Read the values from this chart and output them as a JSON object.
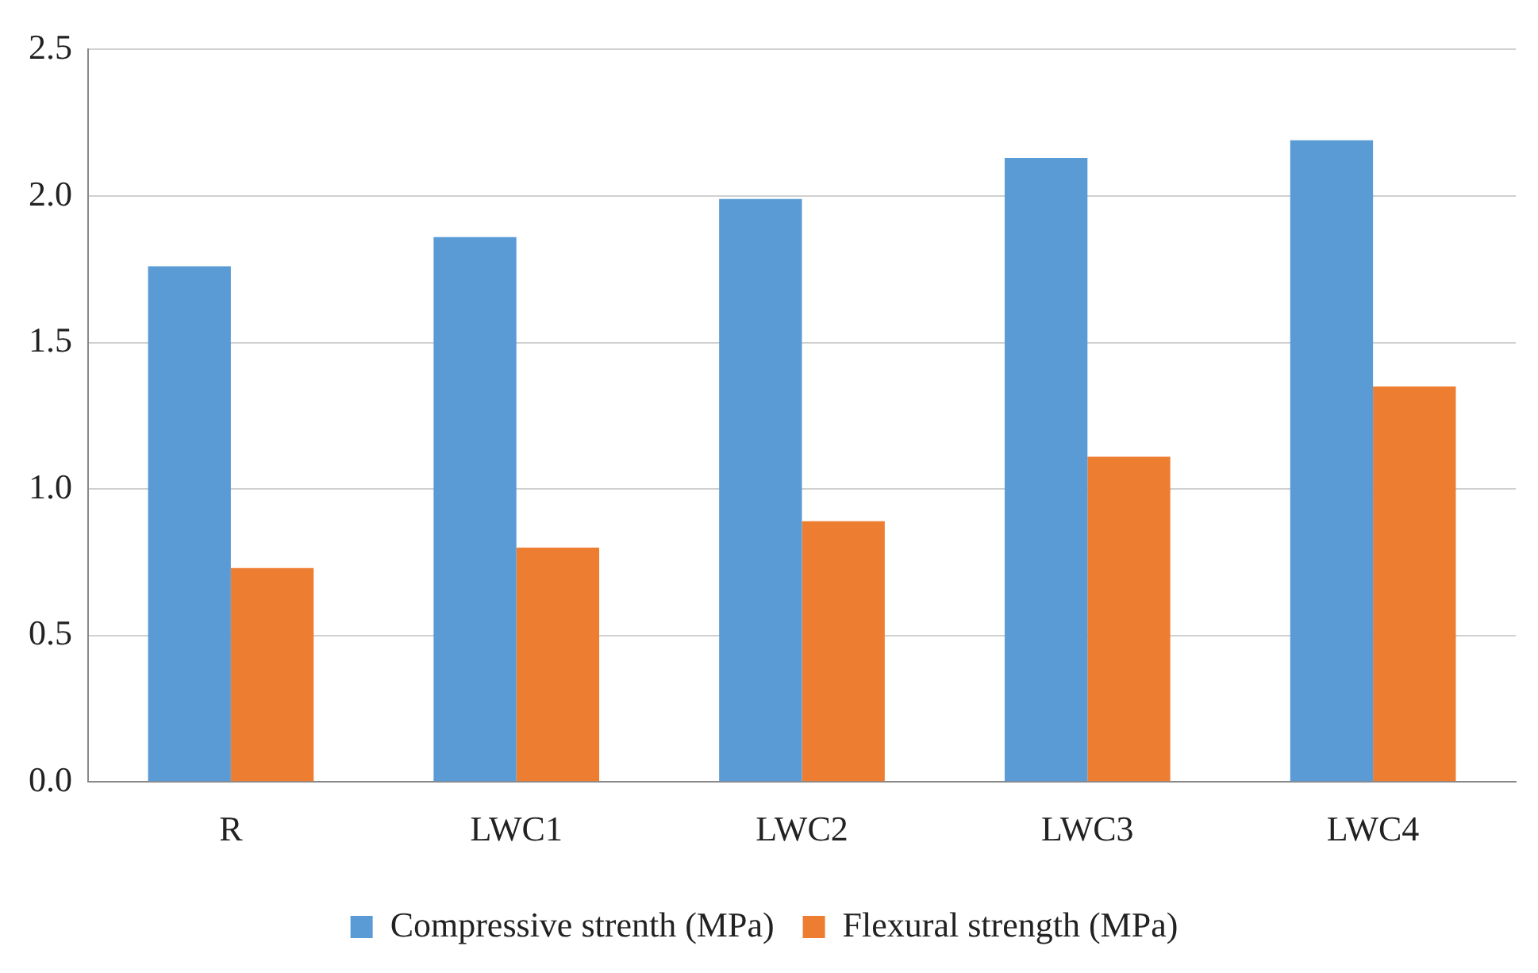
{
  "chart_data": {
    "type": "bar",
    "categories": [
      "R",
      "LWC1",
      "LWC2",
      "LWC3",
      "LWC4"
    ],
    "series": [
      {
        "name": "Compressive strenth (MPa)",
        "color": "#5b9bd5",
        "values": [
          1.76,
          1.86,
          1.99,
          2.13,
          2.19
        ]
      },
      {
        "name": "Flexural strength (MPa)",
        "color": "#ed7d31",
        "values": [
          0.73,
          0.8,
          0.89,
          1.11,
          1.35
        ]
      }
    ],
    "ylim": [
      0,
      2.5
    ],
    "yticks": [
      {
        "value": 0,
        "label": "0.0"
      },
      {
        "value": 0.5,
        "label": "0.5"
      },
      {
        "value": 1,
        "label": "1.0"
      },
      {
        "value": 1.5,
        "label": "1.5"
      },
      {
        "value": 2,
        "label": "2.0"
      },
      {
        "value": 2.5,
        "label": "2.5"
      }
    ],
    "grid": "y",
    "legend": "bottom"
  }
}
